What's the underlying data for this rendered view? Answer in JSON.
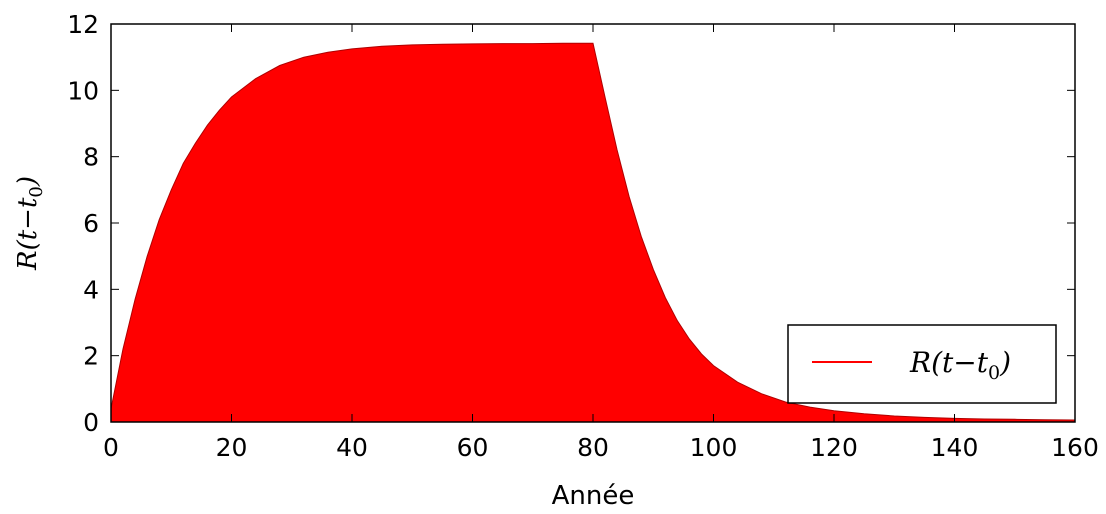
{
  "chart_data": {
    "type": "area",
    "title": "",
    "xlabel": "Année",
    "ylabel": {
      "base": "R(t−t",
      "subscript": "0",
      "close": ")"
    },
    "xlim": [
      0,
      160
    ],
    "ylim": [
      0,
      12
    ],
    "xticks": [
      "0",
      "20",
      "40",
      "60",
      "80",
      "100",
      "120",
      "140",
      "160"
    ],
    "yticks": [
      "0",
      "2",
      "4",
      "6",
      "8",
      "10",
      "12"
    ],
    "grid": false,
    "legend": {
      "position": "lower-right",
      "entries": [
        {
          "base": "R(t−t",
          "subscript": "0",
          "close": ")",
          "color": "#ff0000"
        }
      ]
    },
    "series": [
      {
        "name": "R(t−t0)",
        "color": "#ff0000",
        "x": [
          0,
          2,
          4,
          6,
          8,
          10,
          12,
          14,
          16,
          18,
          20,
          24,
          28,
          32,
          36,
          40,
          45,
          50,
          55,
          60,
          65,
          70,
          75,
          80,
          82,
          84,
          86,
          88,
          90,
          92,
          94,
          96,
          98,
          100,
          104,
          108,
          112,
          116,
          120,
          125,
          130,
          135,
          140,
          145,
          150,
          155,
          160
        ],
        "values": [
          0.4,
          2.2,
          3.7,
          5.0,
          6.1,
          7.0,
          7.8,
          8.4,
          8.95,
          9.4,
          9.8,
          10.35,
          10.75,
          11.0,
          11.15,
          11.25,
          11.33,
          11.37,
          11.39,
          11.4,
          11.41,
          11.41,
          11.42,
          11.42,
          9.8,
          8.2,
          6.8,
          5.6,
          4.6,
          3.75,
          3.05,
          2.5,
          2.05,
          1.7,
          1.2,
          0.85,
          0.6,
          0.45,
          0.34,
          0.25,
          0.18,
          0.14,
          0.11,
          0.09,
          0.08,
          0.07,
          0.06
        ]
      }
    ]
  }
}
